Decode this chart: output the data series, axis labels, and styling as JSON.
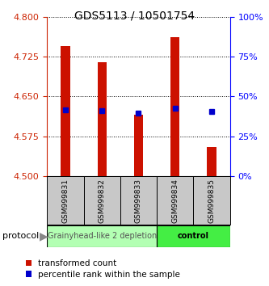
{
  "title": "GDS5113 / 10501754",
  "samples": [
    "GSM999831",
    "GSM999832",
    "GSM999833",
    "GSM999834",
    "GSM999835"
  ],
  "bar_bottom": 4.5,
  "bar_tops": [
    4.745,
    4.715,
    4.615,
    4.762,
    4.555
  ],
  "percentile_values": [
    4.625,
    4.623,
    4.618,
    4.628,
    4.622
  ],
  "ylim": [
    4.5,
    4.8
  ],
  "y_ticks_left": [
    4.5,
    4.575,
    4.65,
    4.725,
    4.8
  ],
  "y_ticks_right": [
    0,
    25,
    50,
    75,
    100
  ],
  "bar_color": "#cc1100",
  "percentile_color": "#0000cc",
  "group_labels": [
    "Grainyhead-like 2 depletion",
    "control"
  ],
  "group_colors": [
    "#b3ffb3",
    "#44ee44"
  ],
  "group_sample_counts": [
    3,
    2
  ],
  "protocol_label": "protocol",
  "legend_red_label": "transformed count",
  "legend_blue_label": "percentile rank within the sample",
  "bg_color": "#ffffff",
  "sample_box_color": "#c8c8c8",
  "bar_width": 0.25,
  "title_fontsize": 10,
  "tick_fontsize": 8,
  "sample_fontsize": 6.5,
  "group_fontsize": 7,
  "legend_fontsize": 7.5
}
